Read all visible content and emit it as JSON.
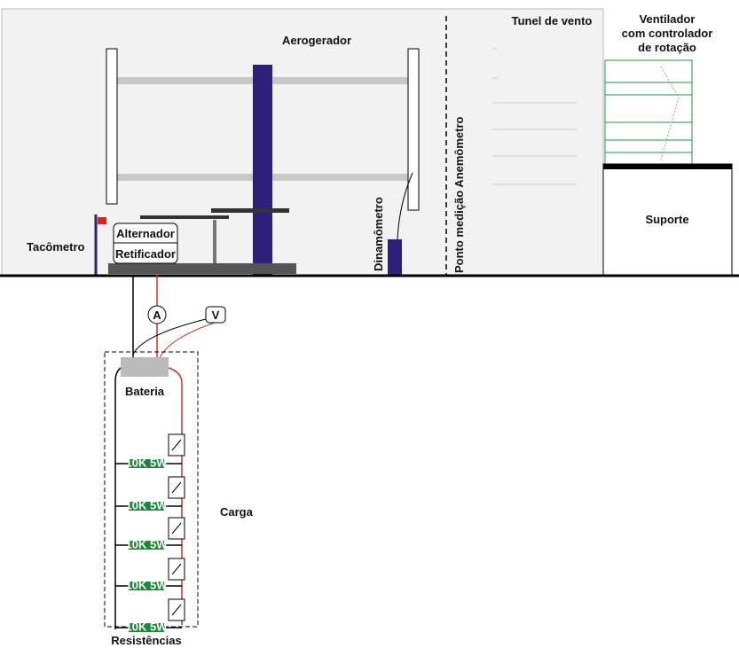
{
  "labels": {
    "turbine": "Aerogerador",
    "tunnel": "Tunel de vento",
    "fan": [
      "Ventilador",
      "com controlador",
      "de rotação"
    ],
    "support": "Suporte",
    "tachometer": "Tacômetro",
    "alternator": "Alternador",
    "rectifier": "Retificador",
    "dynamometer": "Dinamômetro",
    "anemometer_point": "Ponto medição Anemômetro",
    "ammeter": "A",
    "voltmeter": "V",
    "battery": "Bateria",
    "load": "Carga",
    "resistors": "Resistências"
  },
  "resistors": [
    "10K 5W",
    "10K 5W",
    "10K 5W",
    "10K 5W",
    "10K 5W"
  ]
}
